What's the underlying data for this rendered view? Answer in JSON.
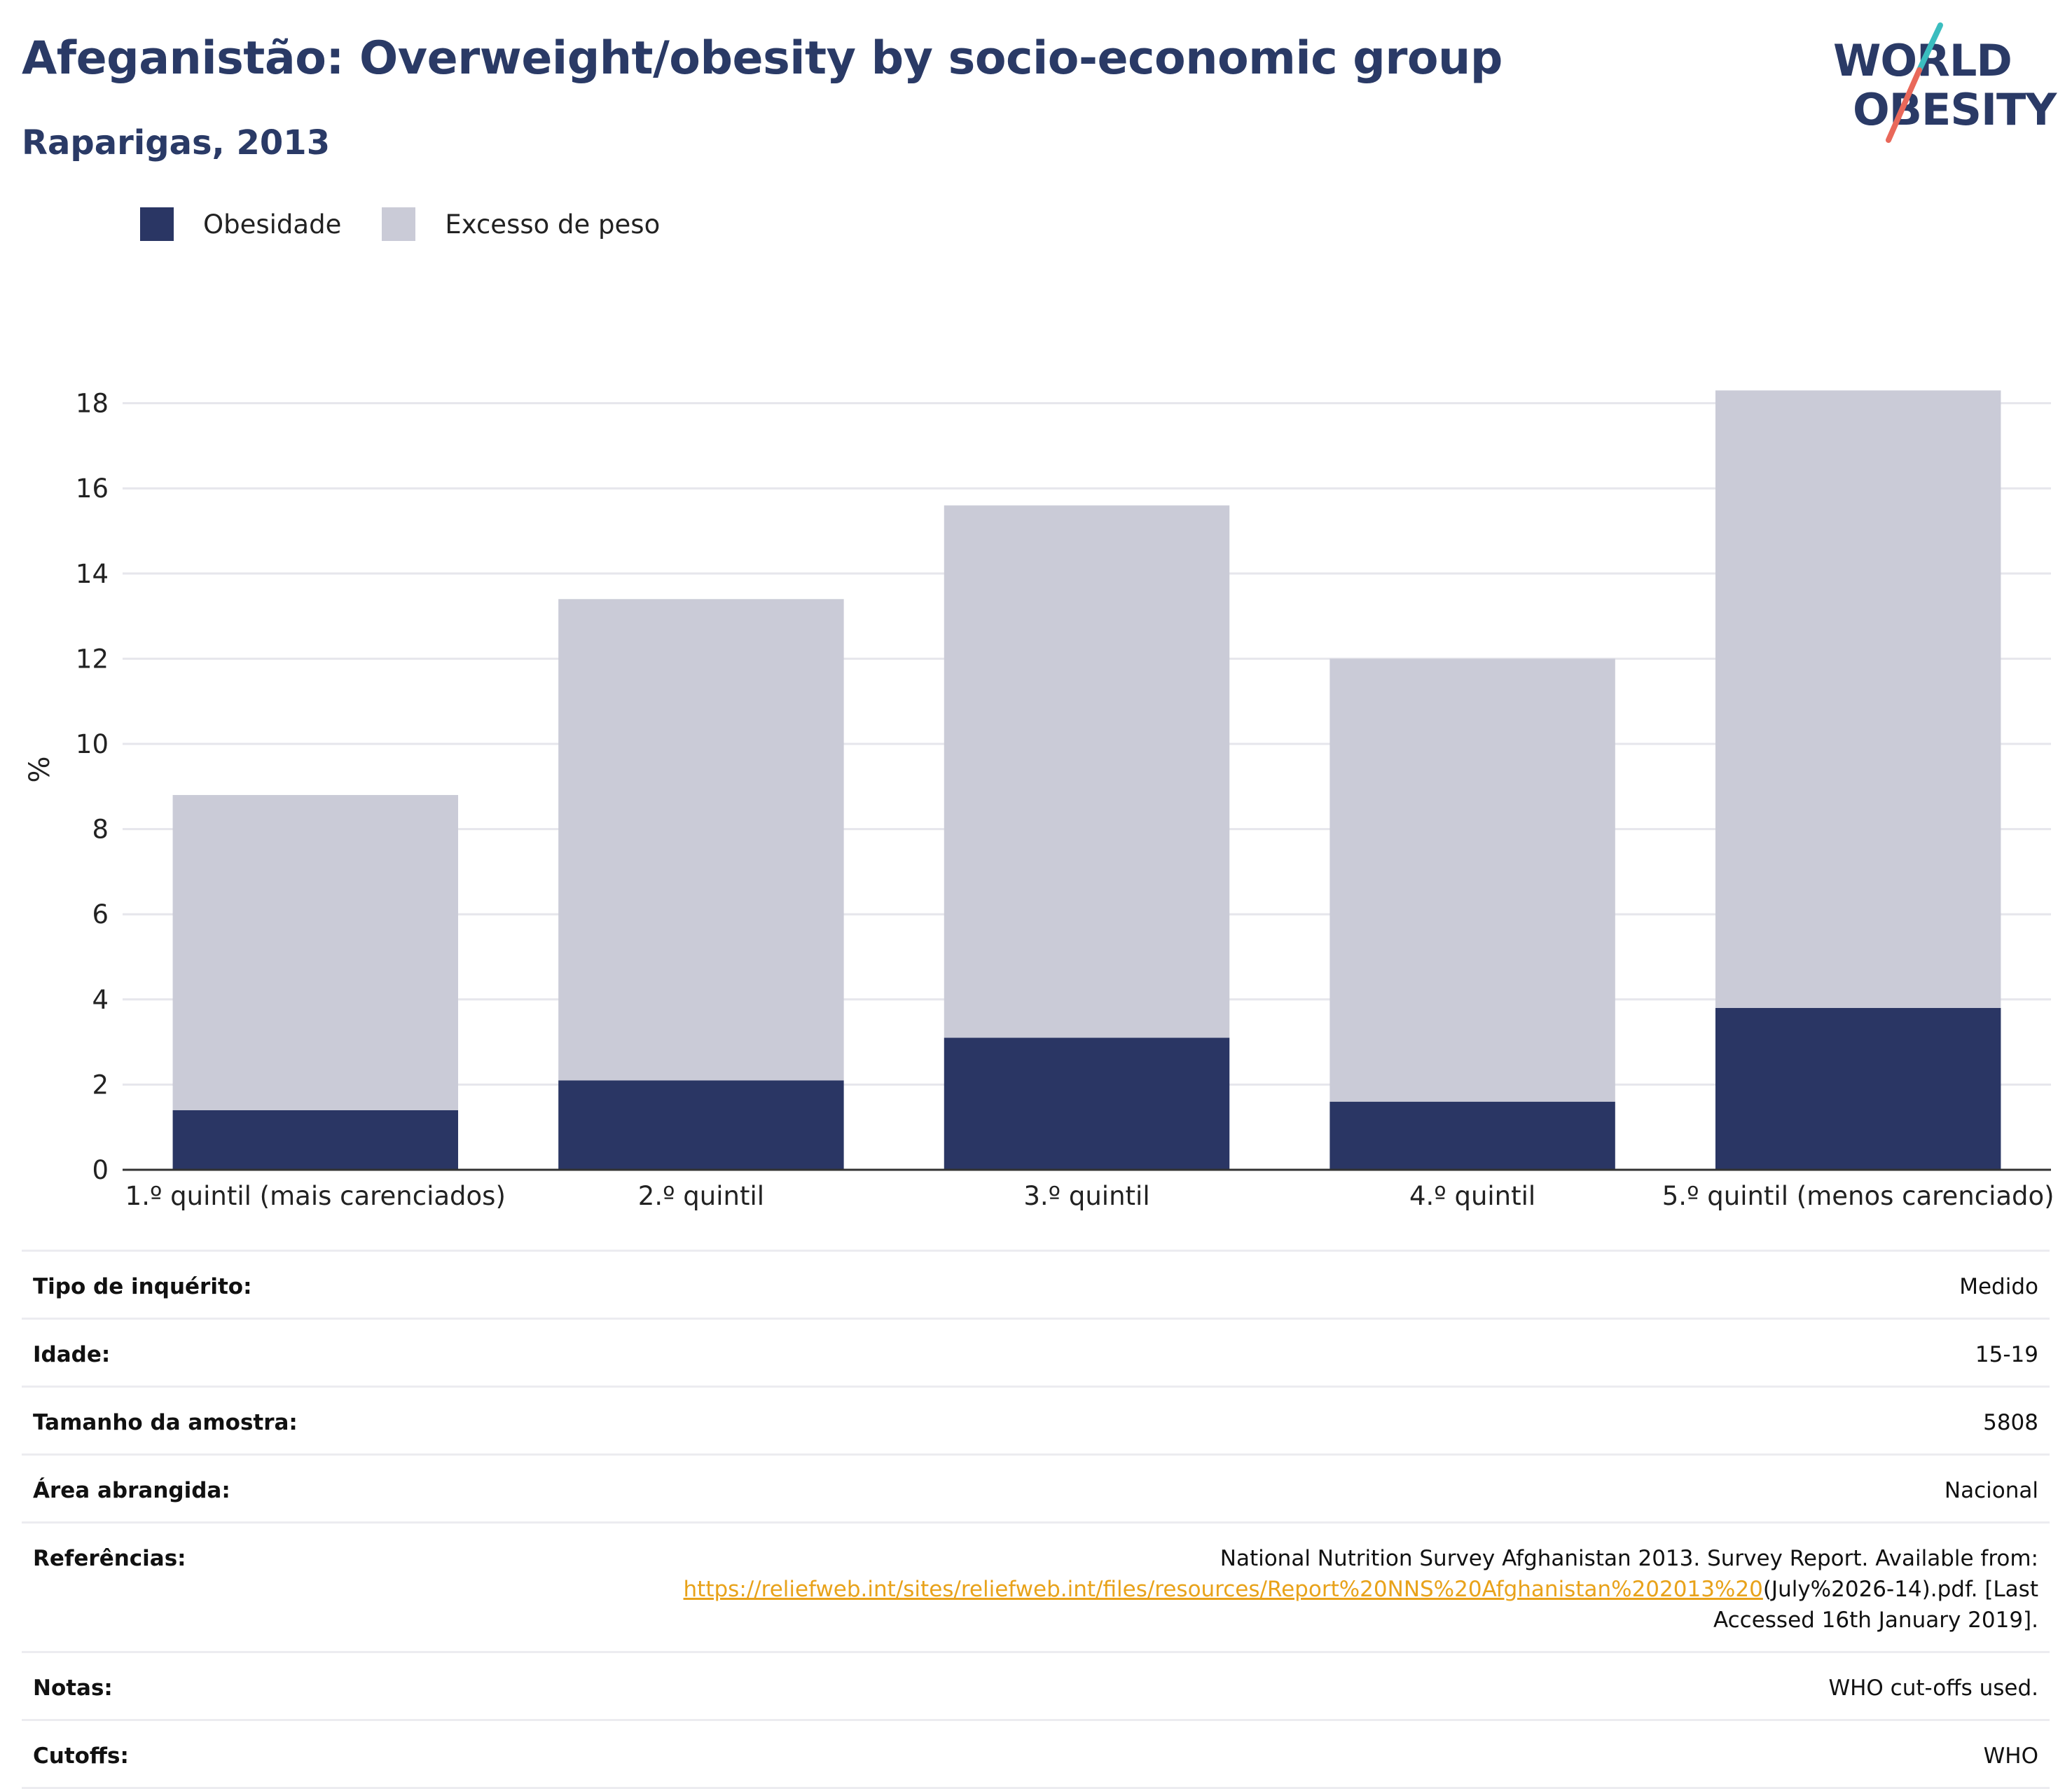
{
  "header": {
    "title": "Afeganistão: Overweight/obesity by socio-economic group",
    "subtitle": "Raparigas, 2013"
  },
  "logo": {
    "line1": "WORLD",
    "line2": "OBESITY"
  },
  "colors": {
    "title": "#2a3a66",
    "obesity": "#2a3664",
    "overweight": "#cacbd7",
    "grid": "#e6e6ec",
    "link": "#e8a21a",
    "logo_teal": "#3bbdbf",
    "logo_coral": "#e9685a"
  },
  "legend": [
    {
      "label": "Obesidade",
      "color": "#2a3664"
    },
    {
      "label": "Excesso de peso",
      "color": "#cacbd7"
    }
  ],
  "chart_data": {
    "type": "bar",
    "stacked": true,
    "categories": [
      "1.º quintil (mais carenciados)",
      "2.º quintil",
      "3.º quintil",
      "4.º quintil",
      "5.º quintil (menos carenciado)"
    ],
    "series": [
      {
        "name": "Obesidade",
        "values": [
          1.4,
          2.1,
          3.1,
          1.6,
          3.8
        ]
      },
      {
        "name": "Excesso de peso",
        "values": [
          7.4,
          11.3,
          12.5,
          10.4,
          14.5
        ]
      }
    ],
    "totals": [
      8.8,
      13.4,
      15.6,
      12.0,
      18.3
    ],
    "ylabel": "%",
    "ylim": [
      0,
      18.3
    ],
    "yticks": [
      0,
      2,
      4,
      6,
      8,
      10,
      12,
      14,
      16,
      18
    ],
    "grid": true,
    "legend_position": "top-left"
  },
  "info": {
    "survey_type_label": "Tipo de inquérito:",
    "survey_type_value": "Medido",
    "age_label": "Idade:",
    "age_value": "15-19",
    "sample_label": "Tamanho da amostra:",
    "sample_value": "5808",
    "area_label": "Área abrangida:",
    "area_value": "Nacional",
    "refs_label": "Referências:",
    "refs_text_before": "National Nutrition Survey Afghanistan 2013. Survey Report. Available from:",
    "refs_link": "https://reliefweb.int/sites/reliefweb.int/files/resources/Report%20NNS%20Afghanistan%202013%20",
    "refs_text_after": "(July%2026-14).pdf. [Last Accessed 16th January 2019].",
    "notes_label": "Notas:",
    "notes_value": "WHO cut-offs used.",
    "cutoffs_label": "Cutoffs:",
    "cutoffs_value": "WHO"
  }
}
